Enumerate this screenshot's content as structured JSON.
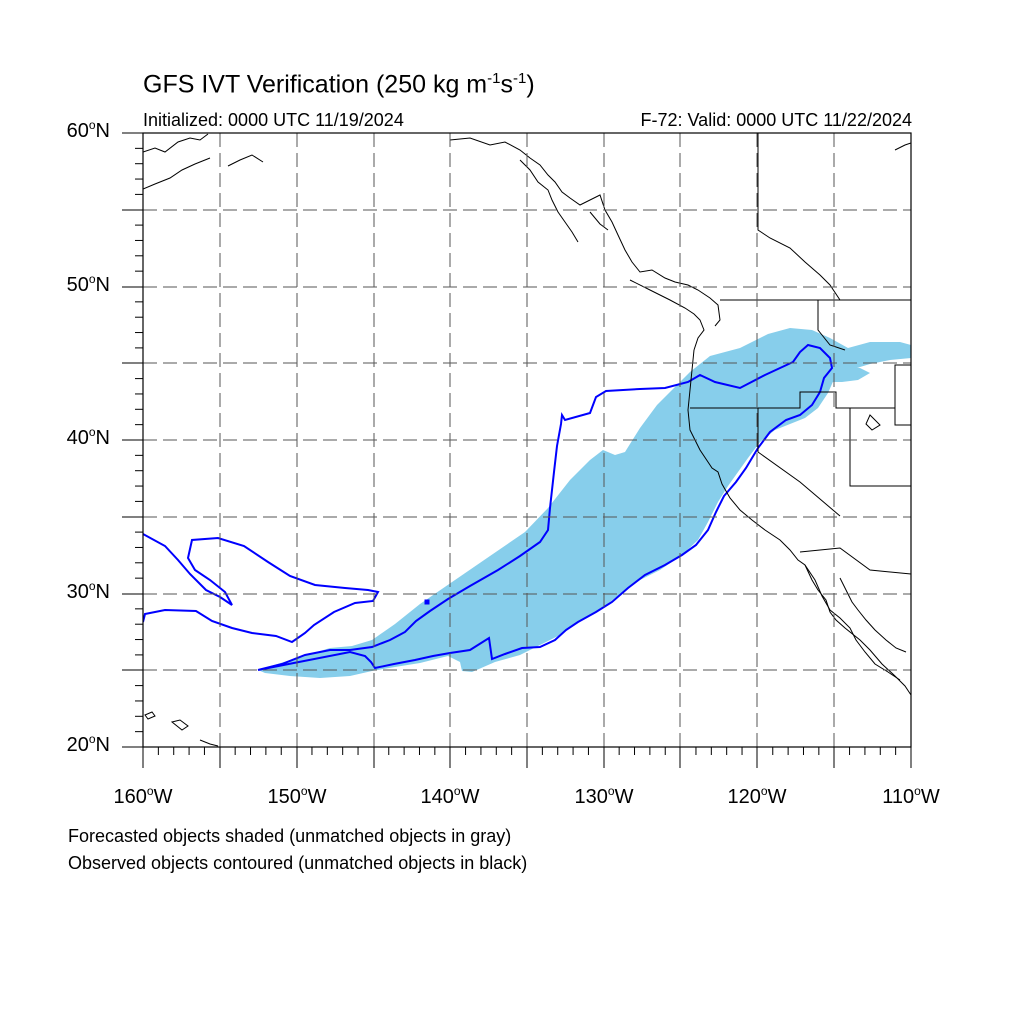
{
  "map": {
    "title": "GFS IVT Verification (250 kg m",
    "title_exp1": "-1",
    "title_mid": "s",
    "title_exp2": "-1",
    "title_end": ")",
    "initialized": "Initialized: 0000 UTC 11/19/2024",
    "valid": "F-72: Valid: 0000 UTC 11/22/2024",
    "extent": {
      "lon": [
        -160,
        -110
      ],
      "lat": [
        20,
        60
      ]
    },
    "lat_labels": [
      {
        "deg": "60",
        "hemi": "N"
      },
      {
        "deg": "50",
        "hemi": "N"
      },
      {
        "deg": "40",
        "hemi": "N"
      },
      {
        "deg": "30",
        "hemi": "N"
      },
      {
        "deg": "20",
        "hemi": "N"
      }
    ],
    "lon_labels": [
      {
        "deg": "160",
        "hemi": "W"
      },
      {
        "deg": "150",
        "hemi": "W"
      },
      {
        "deg": "140",
        "hemi": "W"
      },
      {
        "deg": "130",
        "hemi": "W"
      },
      {
        "deg": "120",
        "hemi": "W"
      },
      {
        "deg": "110",
        "hemi": "W"
      }
    ],
    "gridlines": "dashed, every 5 degrees",
    "colors": {
      "forecast_fill": "#87ceeb",
      "observed_contour": "#0000ff",
      "coastline": "#000000",
      "grid": "#555555"
    },
    "notes": [
      "Forecasted objects shaded (unmatched objects in gray)",
      "Observed objects contoured (unmatched objects in black)"
    ]
  }
}
